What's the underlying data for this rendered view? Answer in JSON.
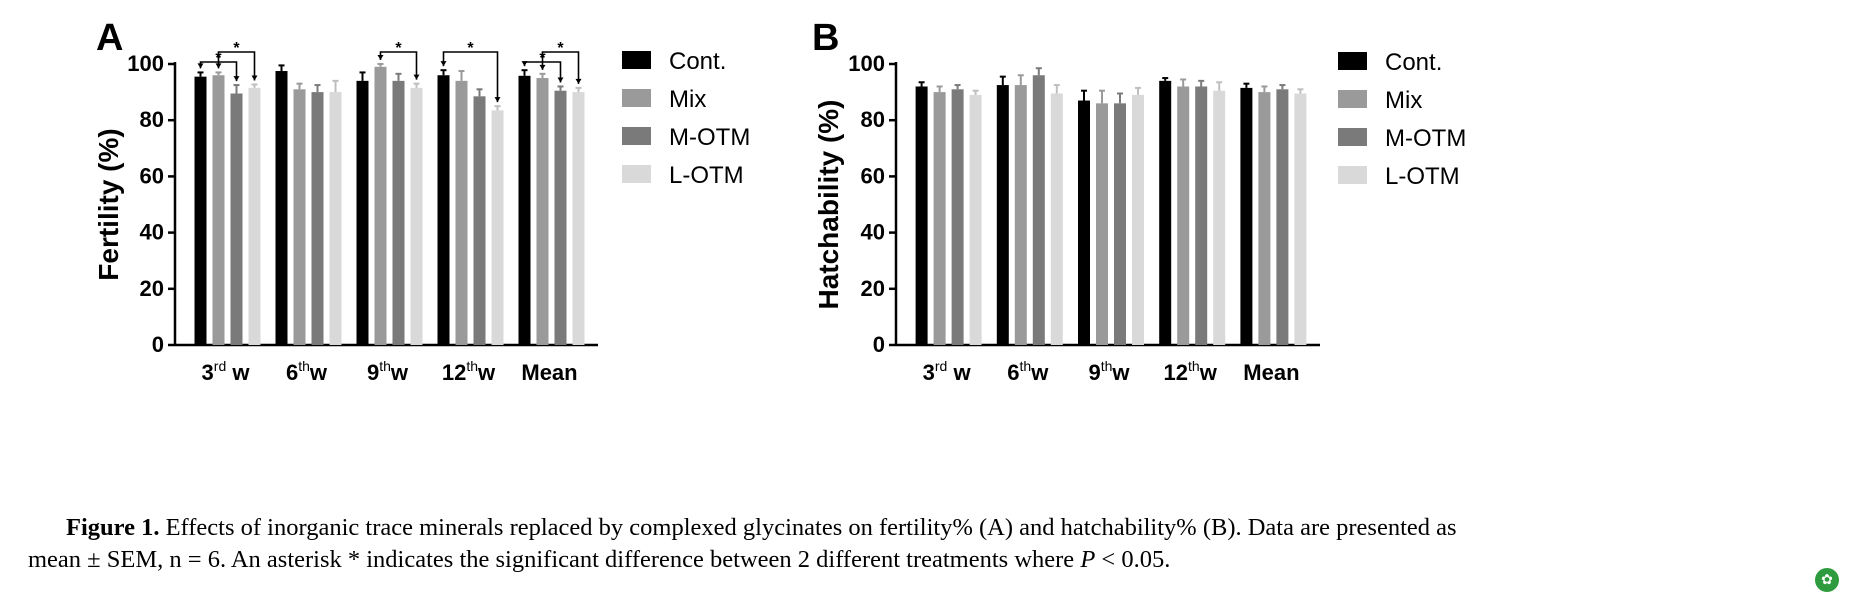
{
  "chart_data": [
    {
      "type": "bar",
      "panel": "A",
      "ylabel": "Fertility (%)",
      "ylim": [
        0,
        100
      ],
      "yticks": [
        0,
        20,
        40,
        60,
        80,
        100
      ],
      "categories": [
        {
          "base": "3",
          "sup": "rd",
          "suffix": " w"
        },
        {
          "base": "6",
          "sup": "th",
          "suffix": "w"
        },
        {
          "base": "9",
          "sup": "th",
          "suffix": "w"
        },
        {
          "base": "12",
          "sup": "th",
          "suffix": "w"
        },
        {
          "base": "Mean",
          "sup": "",
          "suffix": ""
        }
      ],
      "legend": {
        "position": "right"
      },
      "series": [
        {
          "name": "Cont.",
          "color": "#000000",
          "values": [
            95.5,
            97.5,
            94.0,
            96.0,
            95.8
          ],
          "errors": [
            1.5,
            2.0,
            3.0,
            1.8,
            2.0
          ]
        },
        {
          "name": "Mix",
          "color": "#9a9a9a",
          "values": [
            96.0,
            91.0,
            99.0,
            94.0,
            95.0
          ],
          "errors": [
            1.0,
            2.0,
            1.0,
            3.5,
            1.5
          ]
        },
        {
          "name": "M-OTM",
          "color": "#7a7a7a",
          "values": [
            89.5,
            90.0,
            94.0,
            88.5,
            90.5
          ],
          "errors": [
            3.0,
            2.5,
            2.5,
            2.5,
            1.5
          ]
        },
        {
          "name": "L-OTM",
          "color": "#d9d9d9",
          "values": [
            91.5,
            90.0,
            91.5,
            83.5,
            90.0
          ],
          "errors": [
            1.2,
            4.0,
            1.5,
            1.5,
            1.5
          ]
        }
      ],
      "significance": [
        {
          "category": 0,
          "from": 0,
          "to": 2,
          "level": 1,
          "label": "*"
        },
        {
          "category": 0,
          "from": 1,
          "to": 3,
          "level": 0,
          "label": "*"
        },
        {
          "category": 2,
          "from": 1,
          "to": 3,
          "level": 0,
          "label": "*"
        },
        {
          "category": 3,
          "from": 0,
          "to": 3,
          "level": 0,
          "label": "*"
        },
        {
          "category": 4,
          "from": 0,
          "to": 2,
          "level": 1,
          "label": "*"
        },
        {
          "category": 4,
          "from": 1,
          "to": 3,
          "level": 0,
          "label": "*"
        }
      ]
    },
    {
      "type": "bar",
      "panel": "B",
      "ylabel": "Hatchability (%)",
      "ylim": [
        0,
        100
      ],
      "yticks": [
        0,
        20,
        40,
        60,
        80,
        100
      ],
      "categories": [
        {
          "base": "3",
          "sup": "rd",
          "suffix": " w"
        },
        {
          "base": "6",
          "sup": "th",
          "suffix": "w"
        },
        {
          "base": "9",
          "sup": "th",
          "suffix": "w"
        },
        {
          "base": "12",
          "sup": "th",
          "suffix": "w"
        },
        {
          "base": "Mean",
          "sup": "",
          "suffix": ""
        }
      ],
      "legend": {
        "position": "right"
      },
      "series": [
        {
          "name": "Cont.",
          "color": "#000000",
          "values": [
            92.0,
            92.5,
            87.0,
            94.0,
            91.5
          ],
          "errors": [
            1.5,
            3.0,
            3.5,
            1.0,
            1.5
          ]
        },
        {
          "name": "Mix",
          "color": "#9a9a9a",
          "values": [
            90.0,
            92.5,
            86.0,
            92.0,
            90.0
          ],
          "errors": [
            2.0,
            3.5,
            4.5,
            2.5,
            2.0
          ]
        },
        {
          "name": "M-OTM",
          "color": "#7a7a7a",
          "values": [
            91.0,
            96.0,
            86.0,
            92.0,
            91.0
          ],
          "errors": [
            1.5,
            2.5,
            3.5,
            2.0,
            1.5
          ]
        },
        {
          "name": "L-OTM",
          "color": "#d9d9d9",
          "values": [
            89.0,
            89.5,
            89.0,
            90.5,
            89.5
          ],
          "errors": [
            1.5,
            3.0,
            2.5,
            3.0,
            1.5
          ]
        }
      ],
      "significance": []
    }
  ],
  "caption": {
    "label": "Figure 1.",
    "line1_text": "Effects of inorganic trace minerals replaced by complexed glycinates on fertility% (A) and hatchability% (B). Data are presented as",
    "line2_text_a": "mean ± SEM, n = 6. An asterisk * indicates the significant difference between 2 different treatments where ",
    "line2_var": "P",
    "line2_text_b": " < 0.05."
  }
}
